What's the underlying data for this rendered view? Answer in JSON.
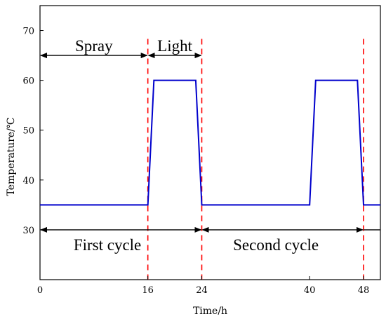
{
  "chart_data": {
    "type": "line",
    "xlabel": "Time/h",
    "ylabel": "Temperature/℃",
    "xlim": [
      0,
      50.5
    ],
    "ylim": [
      20,
      75
    ],
    "x_ticks": [
      0,
      16,
      24,
      40,
      48
    ],
    "y_ticks": [
      30,
      40,
      50,
      60,
      70
    ],
    "grid": false,
    "colors": {
      "series": "#0000cc",
      "dashed": "#ff0000",
      "arrows": "#000000"
    },
    "series": [
      {
        "x": [
          0,
          16.0,
          16.9,
          23.1,
          24.0,
          40.0,
          40.9,
          47.1,
          48.0,
          50.5
        ],
        "y": [
          35,
          35,
          60,
          60,
          35,
          35,
          60,
          60,
          35,
          35
        ]
      }
    ],
    "dashed_lines_x": [
      16,
      24,
      48
    ],
    "annotations": [
      {
        "text": "Spray",
        "x": 8,
        "y": 67,
        "arrow_from": 0,
        "arrow_to": 16,
        "arrow_y": 65
      },
      {
        "text": "Light",
        "x": 20,
        "y": 67,
        "arrow_from": 16,
        "arrow_to": 24,
        "arrow_y": 65
      },
      {
        "text": "First cycle",
        "x": 10,
        "y": 27,
        "arrow_from": 0,
        "arrow_to": 24,
        "arrow_y": 30
      },
      {
        "text": "Second cycle",
        "x": 35,
        "y": 27,
        "arrow_from": 24,
        "arrow_to": 48,
        "arrow_y": 30
      }
    ]
  }
}
